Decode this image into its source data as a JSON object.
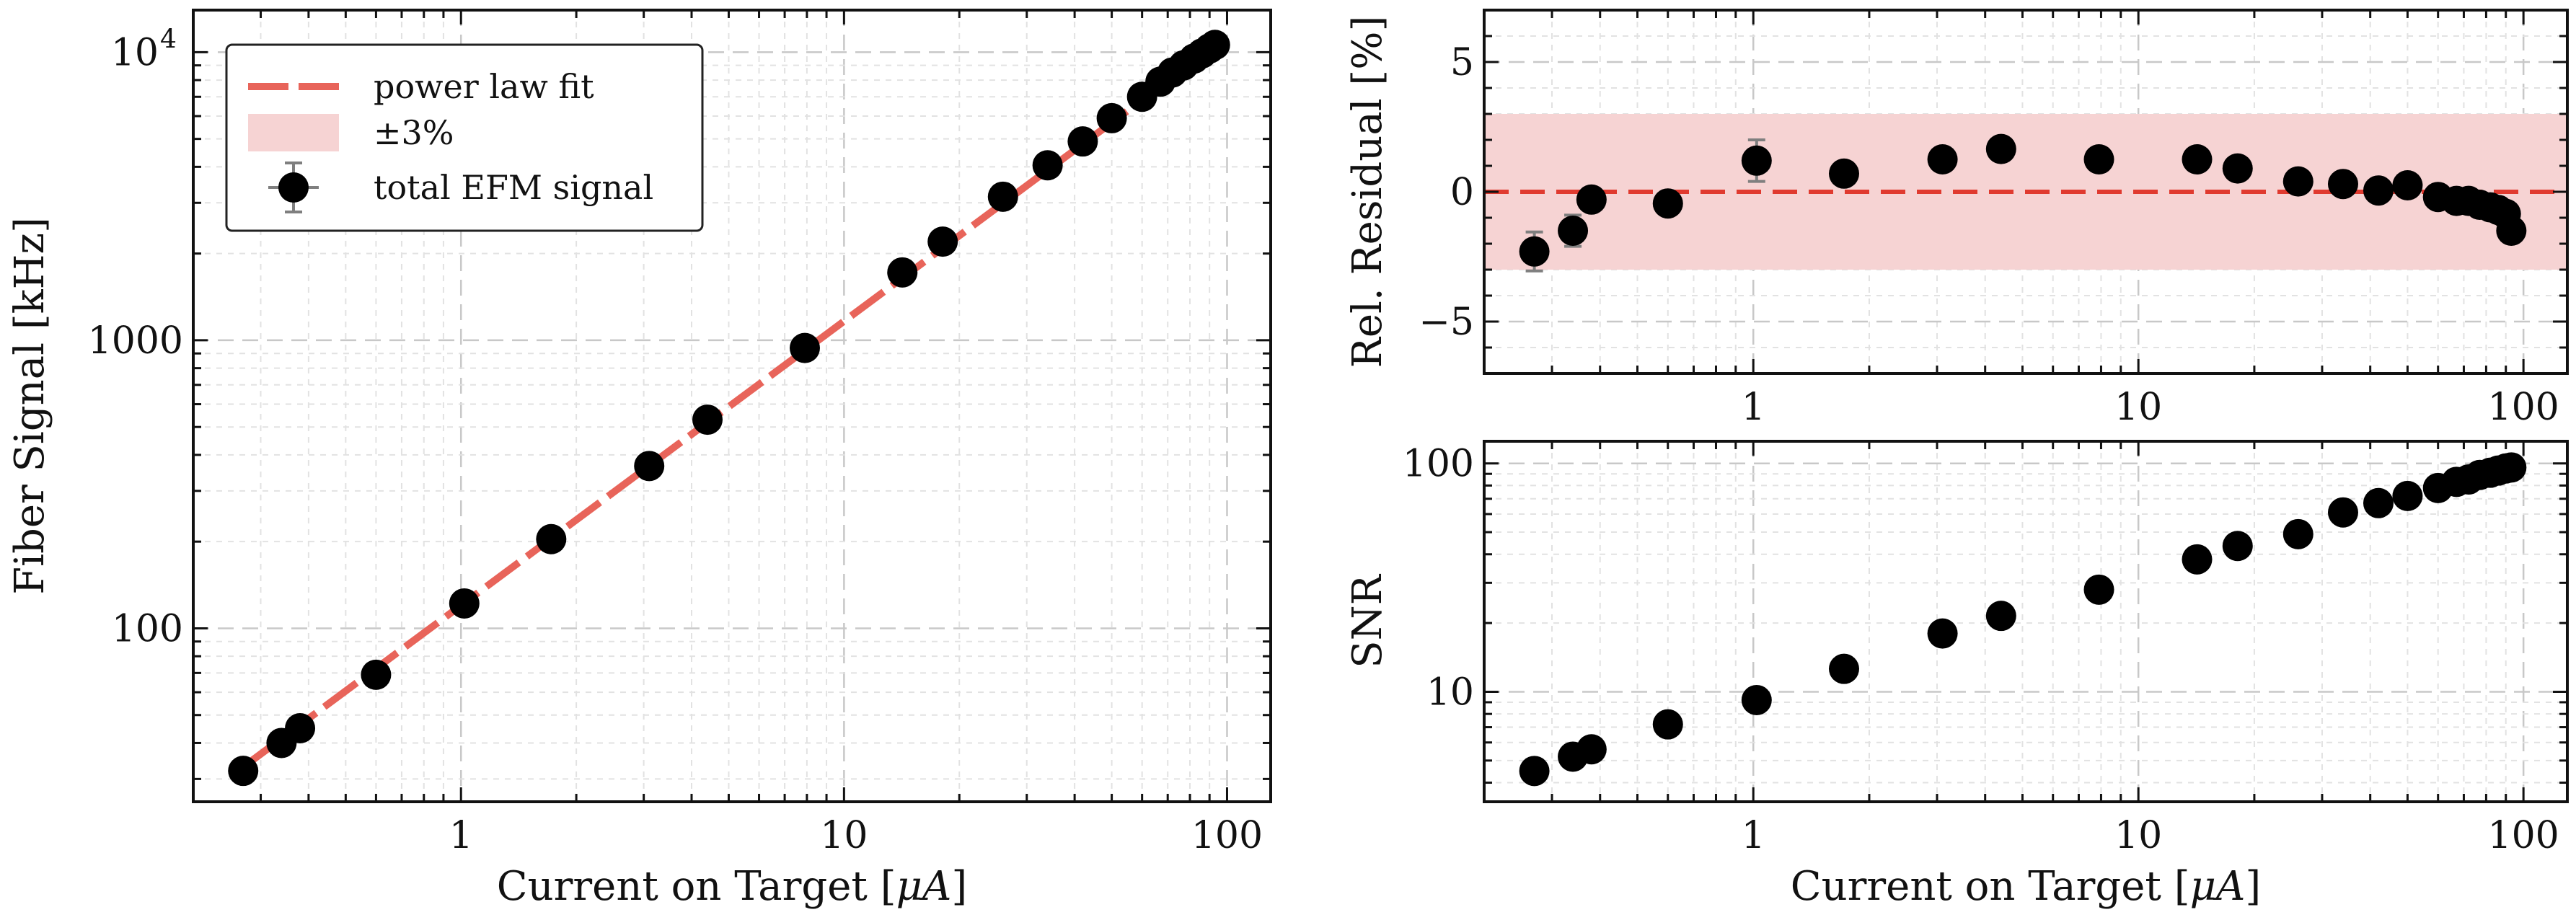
{
  "colors": {
    "fit_line": "#e8645a",
    "band_fill": "#f6d3d3",
    "zero_line": "#e03a2f",
    "marker": "#000000",
    "errorbar": "#7f7f7f"
  },
  "chart_data": [
    {
      "id": "main",
      "type": "scatter",
      "xscale": "log",
      "yscale": "log",
      "xlabel": "Current on Target [μA]",
      "ylabel": "Fiber Signal [kHz]",
      "xlim": [
        0.2,
        130
      ],
      "ylim": [
        25,
        14000
      ],
      "xticks": [
        {
          "value": 1,
          "label": "1"
        },
        {
          "value": 10,
          "label": "10"
        },
        {
          "value": 100,
          "label": "100"
        }
      ],
      "yticks": [
        {
          "value": 100,
          "label": "100"
        },
        {
          "value": 1000,
          "label": "1000"
        },
        {
          "value": 10000,
          "label": "10",
          "exponent": "4"
        }
      ],
      "grid": true,
      "legend_position": "top-left",
      "legend": [
        {
          "label": "power law fit",
          "kind": "dashed-line"
        },
        {
          "label": "±3%",
          "kind": "band"
        },
        {
          "label": "total EFM signal",
          "kind": "marker"
        }
      ],
      "fit": {
        "label": "power law fit",
        "x_range": [
          0.27,
          92
        ],
        "x": [
          0.27,
          92
        ],
        "y": [
          33,
          10400
        ]
      },
      "series": [
        {
          "name": "total EFM signal",
          "x": [
            0.27,
            0.34,
            0.38,
            0.6,
            1.02,
            1.72,
            3.1,
            4.4,
            7.9,
            14.2,
            18.1,
            26.0,
            34.0,
            42.0,
            50.0,
            60.0,
            67.0,
            72.0,
            77.0,
            82.0,
            86.0,
            90.0,
            93.0
          ],
          "y": [
            32,
            40,
            45,
            69,
            122,
            204,
            366,
            530,
            940,
            1720,
            2200,
            3150,
            4050,
            4900,
            5900,
            7000,
            7900,
            8500,
            9000,
            9500,
            9900,
            10300,
            10600
          ]
        }
      ]
    },
    {
      "id": "residual",
      "type": "scatter",
      "xscale": "log",
      "yscale": "linear",
      "xlabel": "",
      "ylabel": "Rel. Residual [%]",
      "xlim": [
        0.2,
        130
      ],
      "ylim": [
        -7,
        7
      ],
      "xticks": [
        {
          "value": 1,
          "label": "1"
        },
        {
          "value": 10,
          "label": "10"
        },
        {
          "value": 100,
          "label": "100"
        }
      ],
      "yticks": [
        {
          "value": -5,
          "label": "−5"
        },
        {
          "value": 0,
          "label": "0"
        },
        {
          "value": 5,
          "label": "5"
        }
      ],
      "grid": true,
      "band": {
        "label": "±3%",
        "y_range": [
          -3,
          3
        ]
      },
      "zero_line": 0,
      "series": [
        {
          "name": "total EFM signal",
          "x": [
            0.27,
            0.34,
            0.38,
            0.6,
            1.02,
            1.72,
            3.1,
            4.4,
            7.9,
            14.2,
            18.1,
            26.0,
            34.0,
            42.0,
            50.0,
            60.0,
            67.0,
            72.0,
            77.0,
            82.0,
            86.0,
            90.0,
            93.0
          ],
          "y": [
            -2.3,
            -1.5,
            -0.3,
            -0.45,
            1.2,
            0.7,
            1.25,
            1.65,
            1.25,
            1.25,
            0.9,
            0.4,
            0.3,
            0.05,
            0.25,
            -0.2,
            -0.35,
            -0.35,
            -0.5,
            -0.6,
            -0.7,
            -0.85,
            -1.5
          ],
          "yerr": [
            0.75,
            0.6,
            0.0,
            0.0,
            0.8,
            0.0,
            0.0,
            0.0,
            0.0,
            0.0,
            0.0,
            0.0,
            0.0,
            0.0,
            0.0,
            0.0,
            0.0,
            0.0,
            0.0,
            0.0,
            0.0,
            0.0,
            0.0
          ]
        }
      ]
    },
    {
      "id": "snr",
      "type": "scatter",
      "xscale": "log",
      "yscale": "log",
      "xlabel": "Current on Target [μA]",
      "ylabel": "SNR",
      "xlim": [
        0.2,
        130
      ],
      "ylim": [
        3.3,
        125
      ],
      "xticks": [
        {
          "value": 1,
          "label": "1"
        },
        {
          "value": 10,
          "label": "10"
        },
        {
          "value": 100,
          "label": "100"
        }
      ],
      "yticks": [
        {
          "value": 10,
          "label": "10"
        },
        {
          "value": 100,
          "label": "100"
        }
      ],
      "grid": true,
      "series": [
        {
          "name": "SNR",
          "x": [
            0.27,
            0.34,
            0.38,
            0.6,
            1.02,
            1.72,
            3.1,
            4.4,
            7.9,
            14.2,
            18.1,
            26.0,
            34.0,
            42.0,
            50.0,
            60.0,
            67.0,
            72.0,
            77.0,
            82.0,
            86.0,
            90.0,
            93.0
          ],
          "y": [
            4.5,
            5.2,
            5.6,
            7.2,
            9.2,
            12.6,
            18.0,
            21.5,
            28.0,
            38.0,
            43.5,
            49.0,
            61.0,
            67.0,
            72.0,
            78.0,
            83.0,
            85.0,
            89.0,
            91.0,
            93.0,
            95.0,
            96.0
          ]
        }
      ]
    }
  ]
}
